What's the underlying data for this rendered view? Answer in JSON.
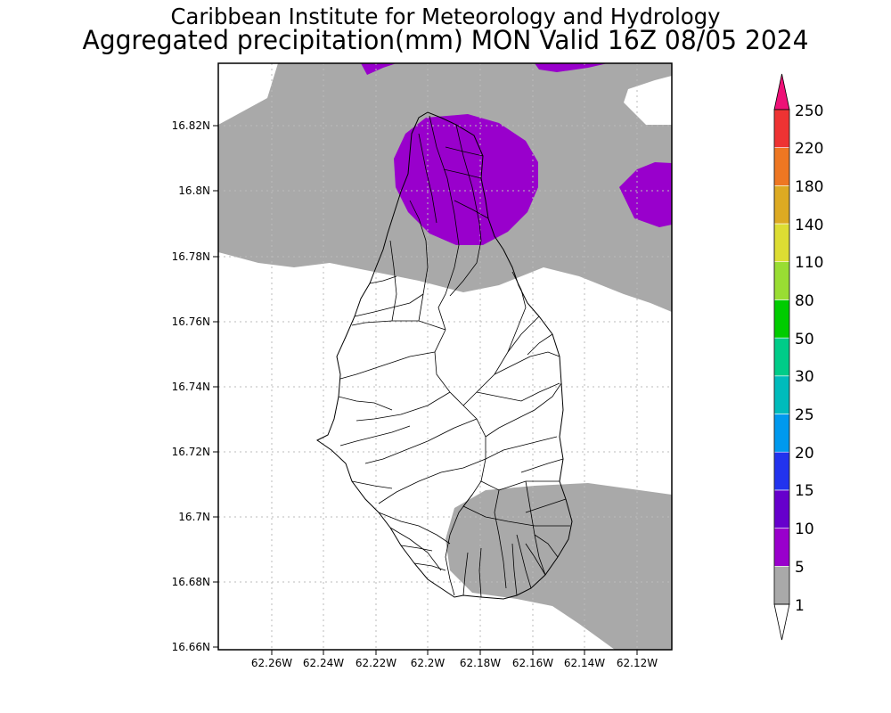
{
  "title": {
    "line1": "Caribbean Institute for Meteorology and Hydrology",
    "line2": "Aggregated precipitation(mm) MON Valid 16Z 08/05 2024"
  },
  "map": {
    "lat_ticks": [
      "16.82N",
      "16.8N",
      "16.78N",
      "16.76N",
      "16.74N",
      "16.72N",
      "16.7N",
      "16.68N",
      "16.66N"
    ],
    "lon_ticks": [
      "62.26W",
      "62.24W",
      "62.22W",
      "62.2W",
      "62.18W",
      "62.16W",
      "62.14W",
      "62.12W"
    ],
    "colors": {
      "gray_1_5": "#a9a9a9",
      "purple_5_10": "#9900cc"
    }
  },
  "legend": {
    "labels": [
      "1",
      "5",
      "10",
      "15",
      "20",
      "25",
      "30",
      "50",
      "80",
      "110",
      "140",
      "180",
      "220",
      "250"
    ],
    "colors": [
      "#a9a9a9",
      "#9900cc",
      "#6600cc",
      "#2233ee",
      "#0099ee",
      "#00bbbb",
      "#00cc88",
      "#00cc00",
      "#99dd33",
      "#dddd33",
      "#ddaa22",
      "#ee7722",
      "#ee3333",
      "#ee1177"
    ]
  }
}
